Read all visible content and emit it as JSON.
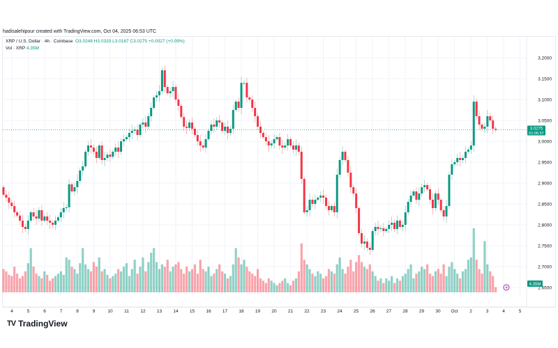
{
  "credit": "hadisalehipour created with TradingView.com, Oct 04, 2025 06:53 UTC",
  "legend": {
    "symbol": "XRP / U.S. Dollar · 4h · Coinbase",
    "open": "O3.0248",
    "high": "H3.0333",
    "low": "L3.0167",
    "close": "C3.0275",
    "change": "+0.0027 (+0.09%)",
    "vol_label": "Vol · XRP",
    "vol_value": "4.35M"
  },
  "price_badge": {
    "price": "3.0275",
    "countdown": "01:06:57"
  },
  "vol_badge": "4.35M",
  "footer": {
    "brand": "TradingView"
  },
  "colors": {
    "up": "#089981",
    "down": "#f23645",
    "grid": "#f0f3fa",
    "event": "#9c27b0"
  },
  "chart_data": {
    "type": "candlestick",
    "title": "XRP / U.S. Dollar · 4h · Coinbase",
    "ylim": [
      2.65,
      3.2
    ],
    "y_ticks": [
      "3.2000",
      "3.1500",
      "3.1000",
      "3.0500",
      "3.0000",
      "2.9500",
      "2.9000",
      "2.8500",
      "2.8000",
      "2.7500",
      "2.7000",
      "2.6500"
    ],
    "x_ticks": [
      "4",
      "5",
      "6",
      "7",
      "8",
      "9",
      "10",
      "11",
      "12",
      "13",
      "14",
      "15",
      "16",
      "17",
      "18",
      "19",
      "20",
      "21",
      "22",
      "23",
      "24",
      "25",
      "26",
      "27",
      "28",
      "29",
      "30",
      "Oct",
      "2",
      "3",
      "4",
      "5"
    ],
    "first_open": 2.89,
    "closes": [
      2.872,
      2.865,
      2.853,
      2.845,
      2.83,
      2.822,
      2.81,
      2.795,
      2.79,
      2.81,
      2.83,
      2.82,
      2.815,
      2.835,
      2.81,
      2.82,
      2.81,
      2.805,
      2.8,
      2.81,
      2.818,
      2.83,
      2.84,
      2.842,
      2.897,
      2.88,
      2.89,
      2.905,
      2.93,
      2.94,
      2.975,
      2.99,
      2.985,
      2.975,
      2.96,
      2.99,
      2.955,
      2.96,
      2.968,
      2.963,
      2.975,
      2.985,
      2.975,
      3.0,
      3.005,
      3.01,
      3.02,
      3.025,
      3.028,
      3.015,
      3.04,
      3.045,
      3.035,
      3.06,
      3.08,
      3.105,
      3.11,
      3.12,
      3.17,
      3.13,
      3.115,
      3.12,
      3.13,
      3.1,
      3.085,
      3.058,
      3.035,
      3.032,
      3.045,
      3.03,
      3.015,
      3.0,
      2.99,
      2.985,
      3.005,
      3.025,
      3.04,
      3.035,
      3.05,
      3.045,
      3.025,
      3.035,
      3.02,
      3.03,
      3.075,
      3.095,
      3.08,
      3.14,
      3.14,
      3.105,
      3.1,
      3.08,
      3.06,
      3.035,
      3.02,
      3.01,
      3.0,
      2.99,
      2.995,
      3.005,
      3.01,
      2.99,
      2.985,
      2.99,
      3.005,
      2.99,
      2.98,
      2.99,
      2.975,
      2.91,
      2.83,
      2.835,
      2.86,
      2.85,
      2.86,
      2.865,
      2.87,
      2.865,
      2.845,
      2.835,
      2.845,
      2.83,
      2.92,
      2.955,
      2.975,
      2.955,
      2.925,
      2.89,
      2.875,
      2.84,
      2.78,
      2.755,
      2.76,
      2.745,
      2.74,
      2.785,
      2.795,
      2.79,
      2.792,
      2.785,
      2.79,
      2.8,
      2.805,
      2.79,
      2.81,
      2.795,
      2.8,
      2.83,
      2.855,
      2.87,
      2.88,
      2.86,
      2.875,
      2.89,
      2.895,
      2.885,
      2.86,
      2.84,
      2.875,
      2.86,
      2.835,
      2.82,
      2.845,
      2.92,
      2.945,
      2.95,
      2.96,
      2.955,
      2.96,
      2.975,
      2.98,
      2.99,
      3.095,
      3.06,
      3.04,
      3.03,
      3.035,
      3.06,
      3.05,
      3.03,
      3.0275
    ],
    "volumes_m": [
      20,
      18,
      15,
      14,
      22,
      16,
      12,
      14,
      18,
      25,
      38,
      22,
      16,
      14,
      12,
      18,
      15,
      10,
      12,
      14,
      16,
      18,
      15,
      30,
      28,
      22,
      20,
      16,
      25,
      38,
      24,
      20,
      18,
      26,
      22,
      30,
      18,
      20,
      15,
      12,
      14,
      16,
      20,
      18,
      22,
      25,
      14,
      20,
      28,
      16,
      22,
      30,
      18,
      26,
      34,
      38,
      26,
      20,
      24,
      22,
      28,
      18,
      22,
      24,
      26,
      20,
      16,
      22,
      18,
      20,
      24,
      16,
      28,
      20,
      18,
      22,
      14,
      16,
      20,
      24,
      18,
      16,
      12,
      14,
      24,
      38,
      30,
      24,
      28,
      22,
      18,
      16,
      14,
      20,
      12,
      10,
      8,
      12,
      10,
      8,
      6,
      8,
      10,
      12,
      8,
      6,
      10,
      12,
      18,
      42,
      28,
      24,
      20,
      16,
      14,
      18,
      16,
      12,
      14,
      20,
      18,
      16,
      24,
      30,
      20,
      16,
      22,
      28,
      18,
      26,
      32,
      26,
      22,
      20,
      24,
      18,
      14,
      10,
      12,
      8,
      12,
      10,
      14,
      8,
      12,
      10,
      14,
      16,
      20,
      24,
      12,
      16,
      18,
      22,
      20,
      24,
      16,
      14,
      18,
      20,
      16,
      24,
      14,
      22,
      26,
      20,
      16,
      12,
      18,
      20,
      28,
      30,
      55,
      28,
      20,
      16,
      44,
      24,
      18,
      14,
      4.35
    ]
  }
}
